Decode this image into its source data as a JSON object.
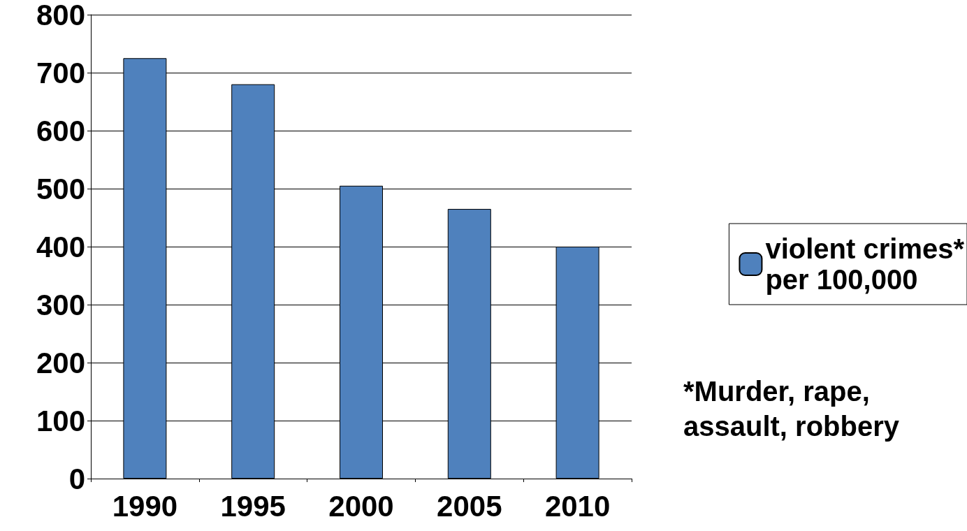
{
  "chart_data": {
    "type": "bar",
    "categories": [
      "1990",
      "1995",
      "2000",
      "2005",
      "2010"
    ],
    "series": [
      {
        "name": "violent crimes*\nper 100,000",
        "color": "#4f81bd",
        "values": [
          725,
          680,
          505,
          465,
          400
        ]
      }
    ],
    "ylim": [
      0,
      800
    ],
    "yticks": [
      0,
      100,
      200,
      300,
      400,
      500,
      600,
      700,
      800
    ],
    "grid": "y",
    "legend": "right",
    "annotations": [
      "*Murder, rape,\nassault, robbery"
    ]
  }
}
